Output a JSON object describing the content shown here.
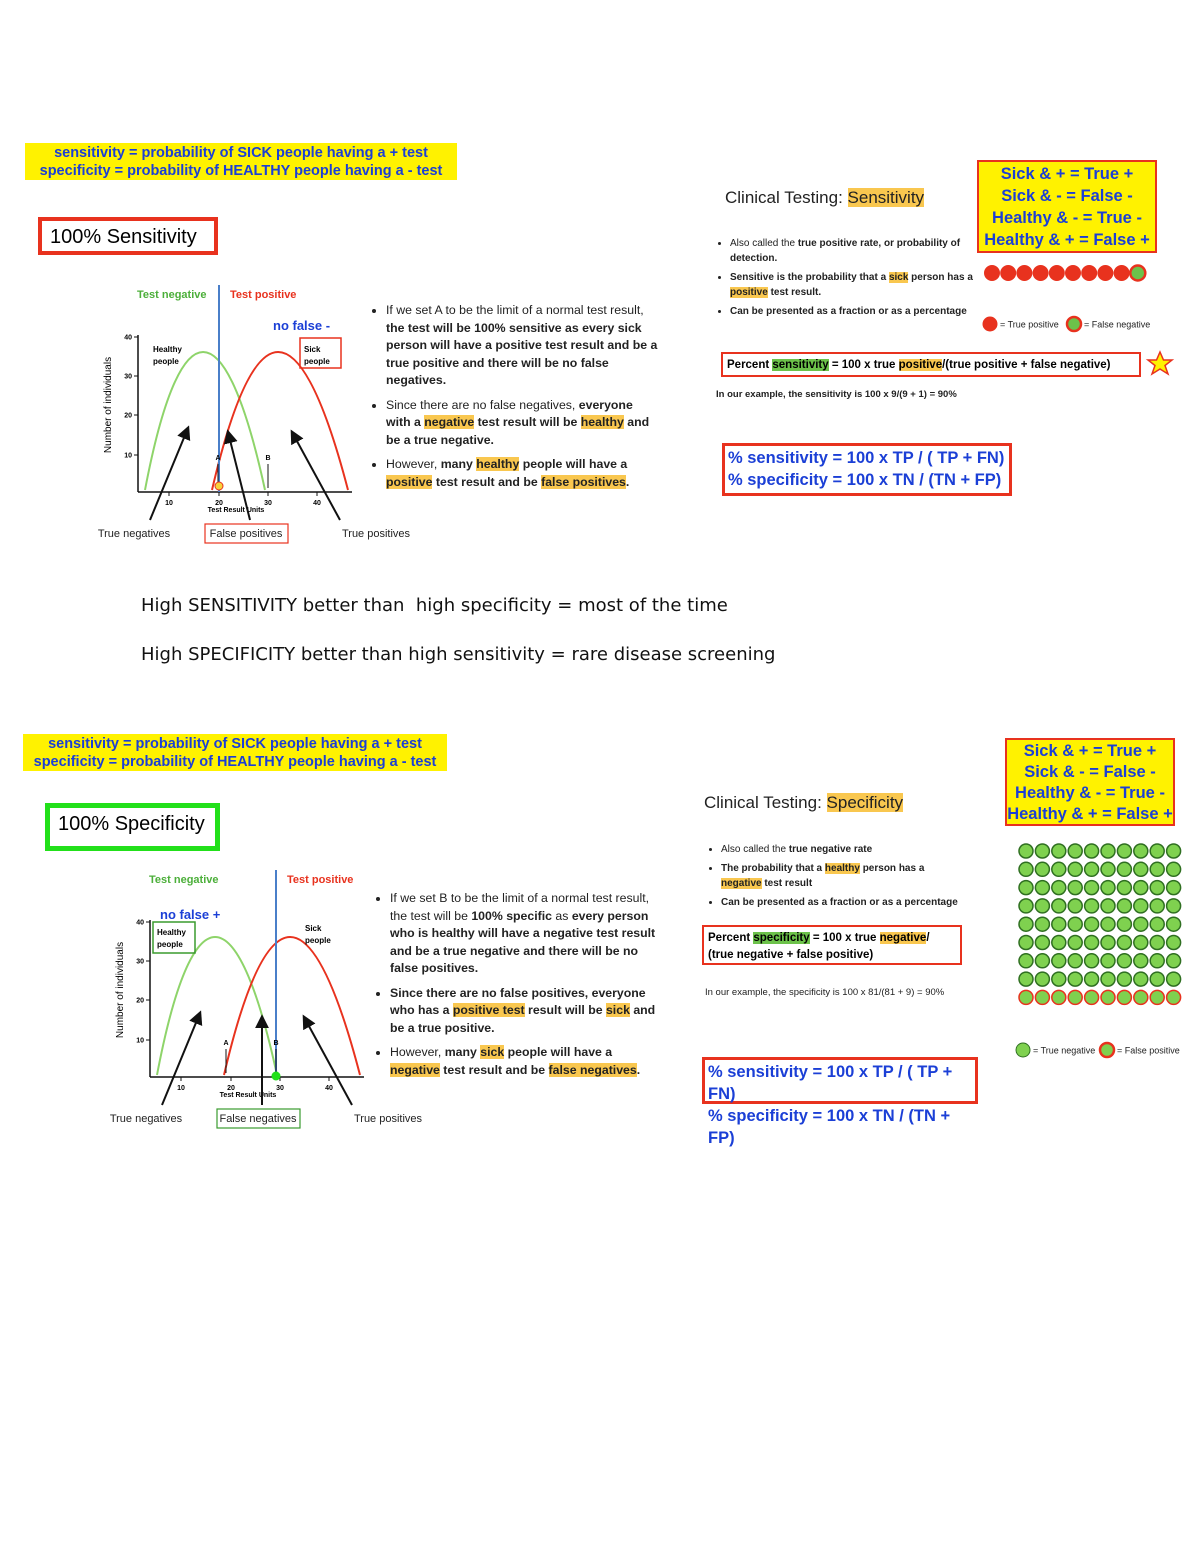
{
  "middle_text": [
    "High SENSITIVITY better than  high specificity = most of the time",
    "High SPECIFICITY better than high sensitivity = rare disease screening"
  ],
  "sections": [
    {
      "definitions": [
        "sensitivity = probability of SICK people having a + test",
        "specificity = probability of HEALTHY people having a - test"
      ],
      "title": "100% Sensitivity",
      "diagram": {
        "test_negative": "Test negative",
        "test_positive": "Test positive",
        "no_false": "no false -",
        "healthy_people": [
          "Healthy",
          "people"
        ],
        "sick_people": [
          "Sick",
          "people"
        ],
        "y_label": "Number of individuals",
        "x_label": "Test Result Units",
        "xticks": [
          "10",
          "20",
          "30",
          "40"
        ],
        "yticks": [
          "10",
          "20",
          "30",
          "40"
        ],
        "markers": [
          "A",
          "B"
        ],
        "bottom_labels": [
          "True negatives",
          "False positives",
          "True positives"
        ]
      },
      "bullets": [
        [
          {
            "text": "If we set A to be the limit of a normal test result, "
          },
          {
            "text": "the test will be 100% sensitive as every sick person will have a positive test result and be a true positive and there will be no false negatives.",
            "bold": true
          }
        ],
        [
          {
            "text": "Since there are no false negatives, "
          },
          {
            "text": "everyone with a ",
            "bold": true
          },
          {
            "text": "negative",
            "bold": true,
            "highlight": "#f9c74f"
          },
          {
            "text": " test result will be ",
            "bold": true
          },
          {
            "text": "healthy",
            "bold": true,
            "highlight": "#f9c74f"
          },
          {
            "text": " and be a true negative.",
            "bold": true
          }
        ],
        [
          {
            "text": "However, "
          },
          {
            "text": "many ",
            "bold": true
          },
          {
            "text": "healthy",
            "bold": true,
            "highlight": "#f9c74f"
          },
          {
            "text": " people will have a ",
            "bold": true
          },
          {
            "text": "positive",
            "bold": true,
            "highlight": "#f9c74f"
          },
          {
            "text": " test result and be ",
            "bold": true
          },
          {
            "text": "false positives",
            "bold": true,
            "highlight": "#f9c74f"
          },
          {
            "text": ".",
            "bold": true
          }
        ]
      ],
      "clinical_title": [
        {
          "text": "Clinical Testing: "
        },
        {
          "text": "Sensitivity",
          "highlight": "#f9c74f"
        }
      ],
      "clinical_bullets": [
        [
          {
            "text": "Also called the "
          },
          {
            "text": "true positive rate",
            "bold": true
          },
          {
            "text": ", or probability of detection.",
            "bold": true
          }
        ],
        [
          {
            "text": "Sensitive is the probability that a ",
            "bold": true
          },
          {
            "text": "sick",
            "bold": true,
            "highlight": "#f9c74f"
          },
          {
            "text": " person has a ",
            "bold": true
          },
          {
            "text": "positive",
            "bold": true,
            "highlight": "#f9c74f"
          },
          {
            "text": " test result.",
            "bold": true
          }
        ],
        [
          {
            "text": "Can be presented as a fraction or as a percentage",
            "bold": true
          }
        ]
      ],
      "legend": [
        "Sick & + = True +",
        "Sick & - = False -",
        "Healthy & - = True -",
        "Healthy & + = False +"
      ],
      "circle_legend": [
        "= True positive",
        "= False negative"
      ],
      "formula": [
        {
          "text": "Percent "
        },
        {
          "text": "sensitivity",
          "highlight": "#6cc24a"
        },
        {
          "text": " = 100 x true "
        },
        {
          "text": "positive",
          "highlight": "#f9c74f"
        },
        {
          "text": "/(true positive + false negative)"
        }
      ],
      "example": "In our example, the sensitivity is 100 x 9/(9 + 1) = 90%",
      "formulas": [
        "% sensitivity = 100 x TP / ( TP + FN)",
        "% specificity = 100 x TN / (TN + FP)"
      ]
    },
    {
      "definitions": [
        "sensitivity = probability of SICK people having a + test",
        "specificity = probability of HEALTHY people having a - test"
      ],
      "title": "100% Specificity",
      "diagram": {
        "test_negative": "Test negative",
        "test_positive": "Test positive",
        "no_false": "no false +",
        "healthy_people": [
          "Healthy",
          "people"
        ],
        "sick_people": [
          "Sick",
          "people"
        ],
        "y_label": "Number of individuals",
        "x_label": "Test Result Units",
        "xticks": [
          "10",
          "20",
          "30",
          "40"
        ],
        "yticks": [
          "10",
          "20",
          "30",
          "40"
        ],
        "markers": [
          "A",
          "B"
        ],
        "bottom_labels": [
          "True negatives",
          "False negatives",
          "True positives"
        ]
      },
      "bullets": [
        [
          {
            "text": "If we set B to be the limit of a normal test result, the test will be "
          },
          {
            "text": "100% specific",
            "bold": true
          },
          {
            "text": " as "
          },
          {
            "text": "every person who is healthy will have a negative test result and be a true negative and there will be no false positives.",
            "bold": true
          }
        ],
        [
          {
            "text": "Since there are no false positives, everyone who has a ",
            "bold": true
          },
          {
            "text": "positive test",
            "bold": true,
            "highlight": "#f9c74f"
          },
          {
            "text": " result will be ",
            "bold": true
          },
          {
            "text": "sick",
            "bold": true,
            "highlight": "#f9c74f"
          },
          {
            "text": " and be a true positive.",
            "bold": true
          }
        ],
        [
          {
            "text": "However, "
          },
          {
            "text": "many ",
            "bold": true
          },
          {
            "text": "sick",
            "bold": true,
            "highlight": "#f9c74f"
          },
          {
            "text": " people will have a ",
            "bold": true
          },
          {
            "text": "negative",
            "bold": true,
            "highlight": "#f9c74f"
          },
          {
            "text": " test result and be ",
            "bold": true
          },
          {
            "text": "false negatives",
            "bold": true,
            "highlight": "#f9c74f"
          },
          {
            "text": ".",
            "bold": true
          }
        ]
      ],
      "clinical_title": [
        {
          "text": "Clinical Testing: "
        },
        {
          "text": "Specificity",
          "highlight": "#f9c74f"
        }
      ],
      "clinical_bullets": [
        [
          {
            "text": "Also called the "
          },
          {
            "text": "true negative rate",
            "bold": true
          }
        ],
        [
          {
            "text": "The probability that a ",
            "bold": true
          },
          {
            "text": "healthy",
            "bold": true,
            "highlight": "#f9c74f"
          },
          {
            "text": " person has a ",
            "bold": true
          },
          {
            "text": "negative",
            "bold": true,
            "highlight": "#f9c74f"
          },
          {
            "text": " test result",
            "bold": true
          }
        ],
        [
          {
            "text": "Can be presented as a fraction or as a percentage",
            "bold": true
          }
        ]
      ],
      "legend": [
        "Sick & + = True +",
        "Sick & - = False -",
        "Healthy & - = True -",
        "Healthy & + = False +"
      ],
      "circle_legend": [
        "= True negative",
        "= False positive"
      ],
      "formula": [
        {
          "text": "Percent "
        },
        {
          "text": "specificity",
          "highlight": "#6cc24a"
        },
        {
          "text": " = 100 x true "
        },
        {
          "text": "negative",
          "highlight": "#f9c74f"
        },
        {
          "text": "/ (true negative + false positive)"
        }
      ],
      "example": "In our example, the specificity is 100 x 81/(81 + 9) = 90%",
      "formulas": [
        "% sensitivity = 100 x TP / ( TP + FN)",
        "% specificity = 100 x TN / (TN + FP)"
      ]
    }
  ]
}
